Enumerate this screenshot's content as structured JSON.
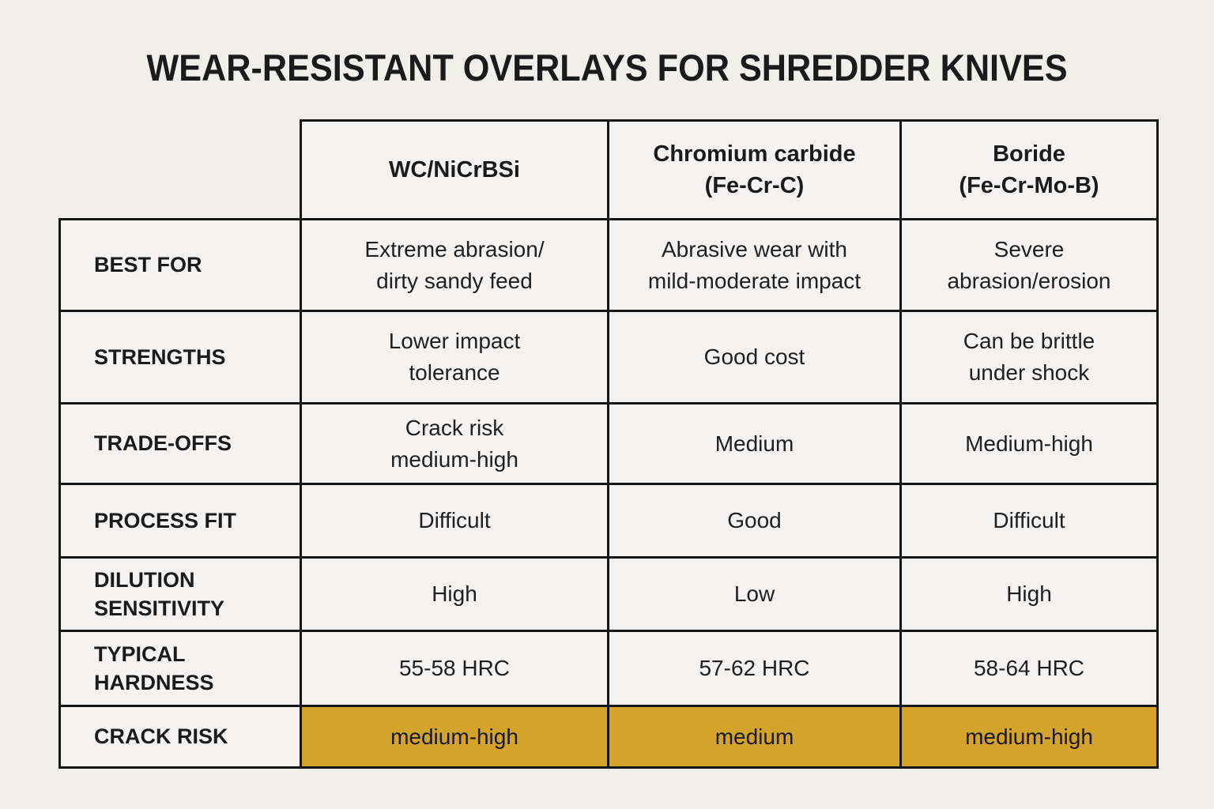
{
  "title": "WEAR-RESISTANT OVERLAYS FOR SHREDDER KNIVES",
  "colors": {
    "highlight": "#d4a329",
    "highlight_text": "#17172e",
    "border": "#161616",
    "background": "#f0efec",
    "cell_background": "#f4f3f1"
  },
  "chart_data": {
    "type": "table",
    "title": "WEAR-RESISTANT OVERLAYS FOR SHREDDER KNIVES",
    "columns": [
      "WC/NiCrBSi",
      "Chromium carbide\n(Fe-Cr-C)",
      "Boride\n(Fe-Cr-Mo-B)"
    ],
    "rows": [
      {
        "label": "BEST FOR",
        "cells": [
          "Extreme abrasion/\ndirty sandy feed",
          "Abrasive wear with\nmild-moderate impact",
          "Severe\nabrasion/erosion"
        ],
        "highlight": false
      },
      {
        "label": "STRENGTHS",
        "cells": [
          "Lower impact\ntolerance",
          "Good cost",
          "Can be brittle\nunder shock"
        ],
        "highlight": false
      },
      {
        "label": "TRADE-OFFS",
        "cells": [
          "Crack risk\nmedium-high",
          "Medium",
          "Medium-high"
        ],
        "highlight": false
      },
      {
        "label": "PROCESS FIT",
        "cells": [
          "Difficult",
          "Good",
          "Difficult"
        ],
        "highlight": false
      },
      {
        "label": "DILUTION\nSENSITIVITY",
        "cells": [
          "High",
          "Low",
          "High"
        ],
        "highlight": false
      },
      {
        "label": "TYPICAL\nHARDNESS",
        "cells": [
          "55-58 HRC",
          "57-62 HRC",
          "58-64 HRC"
        ],
        "highlight": false
      },
      {
        "label": "CRACK RISK",
        "cells": [
          "medium-high",
          "medium",
          "medium-high"
        ],
        "highlight": true
      }
    ]
  }
}
